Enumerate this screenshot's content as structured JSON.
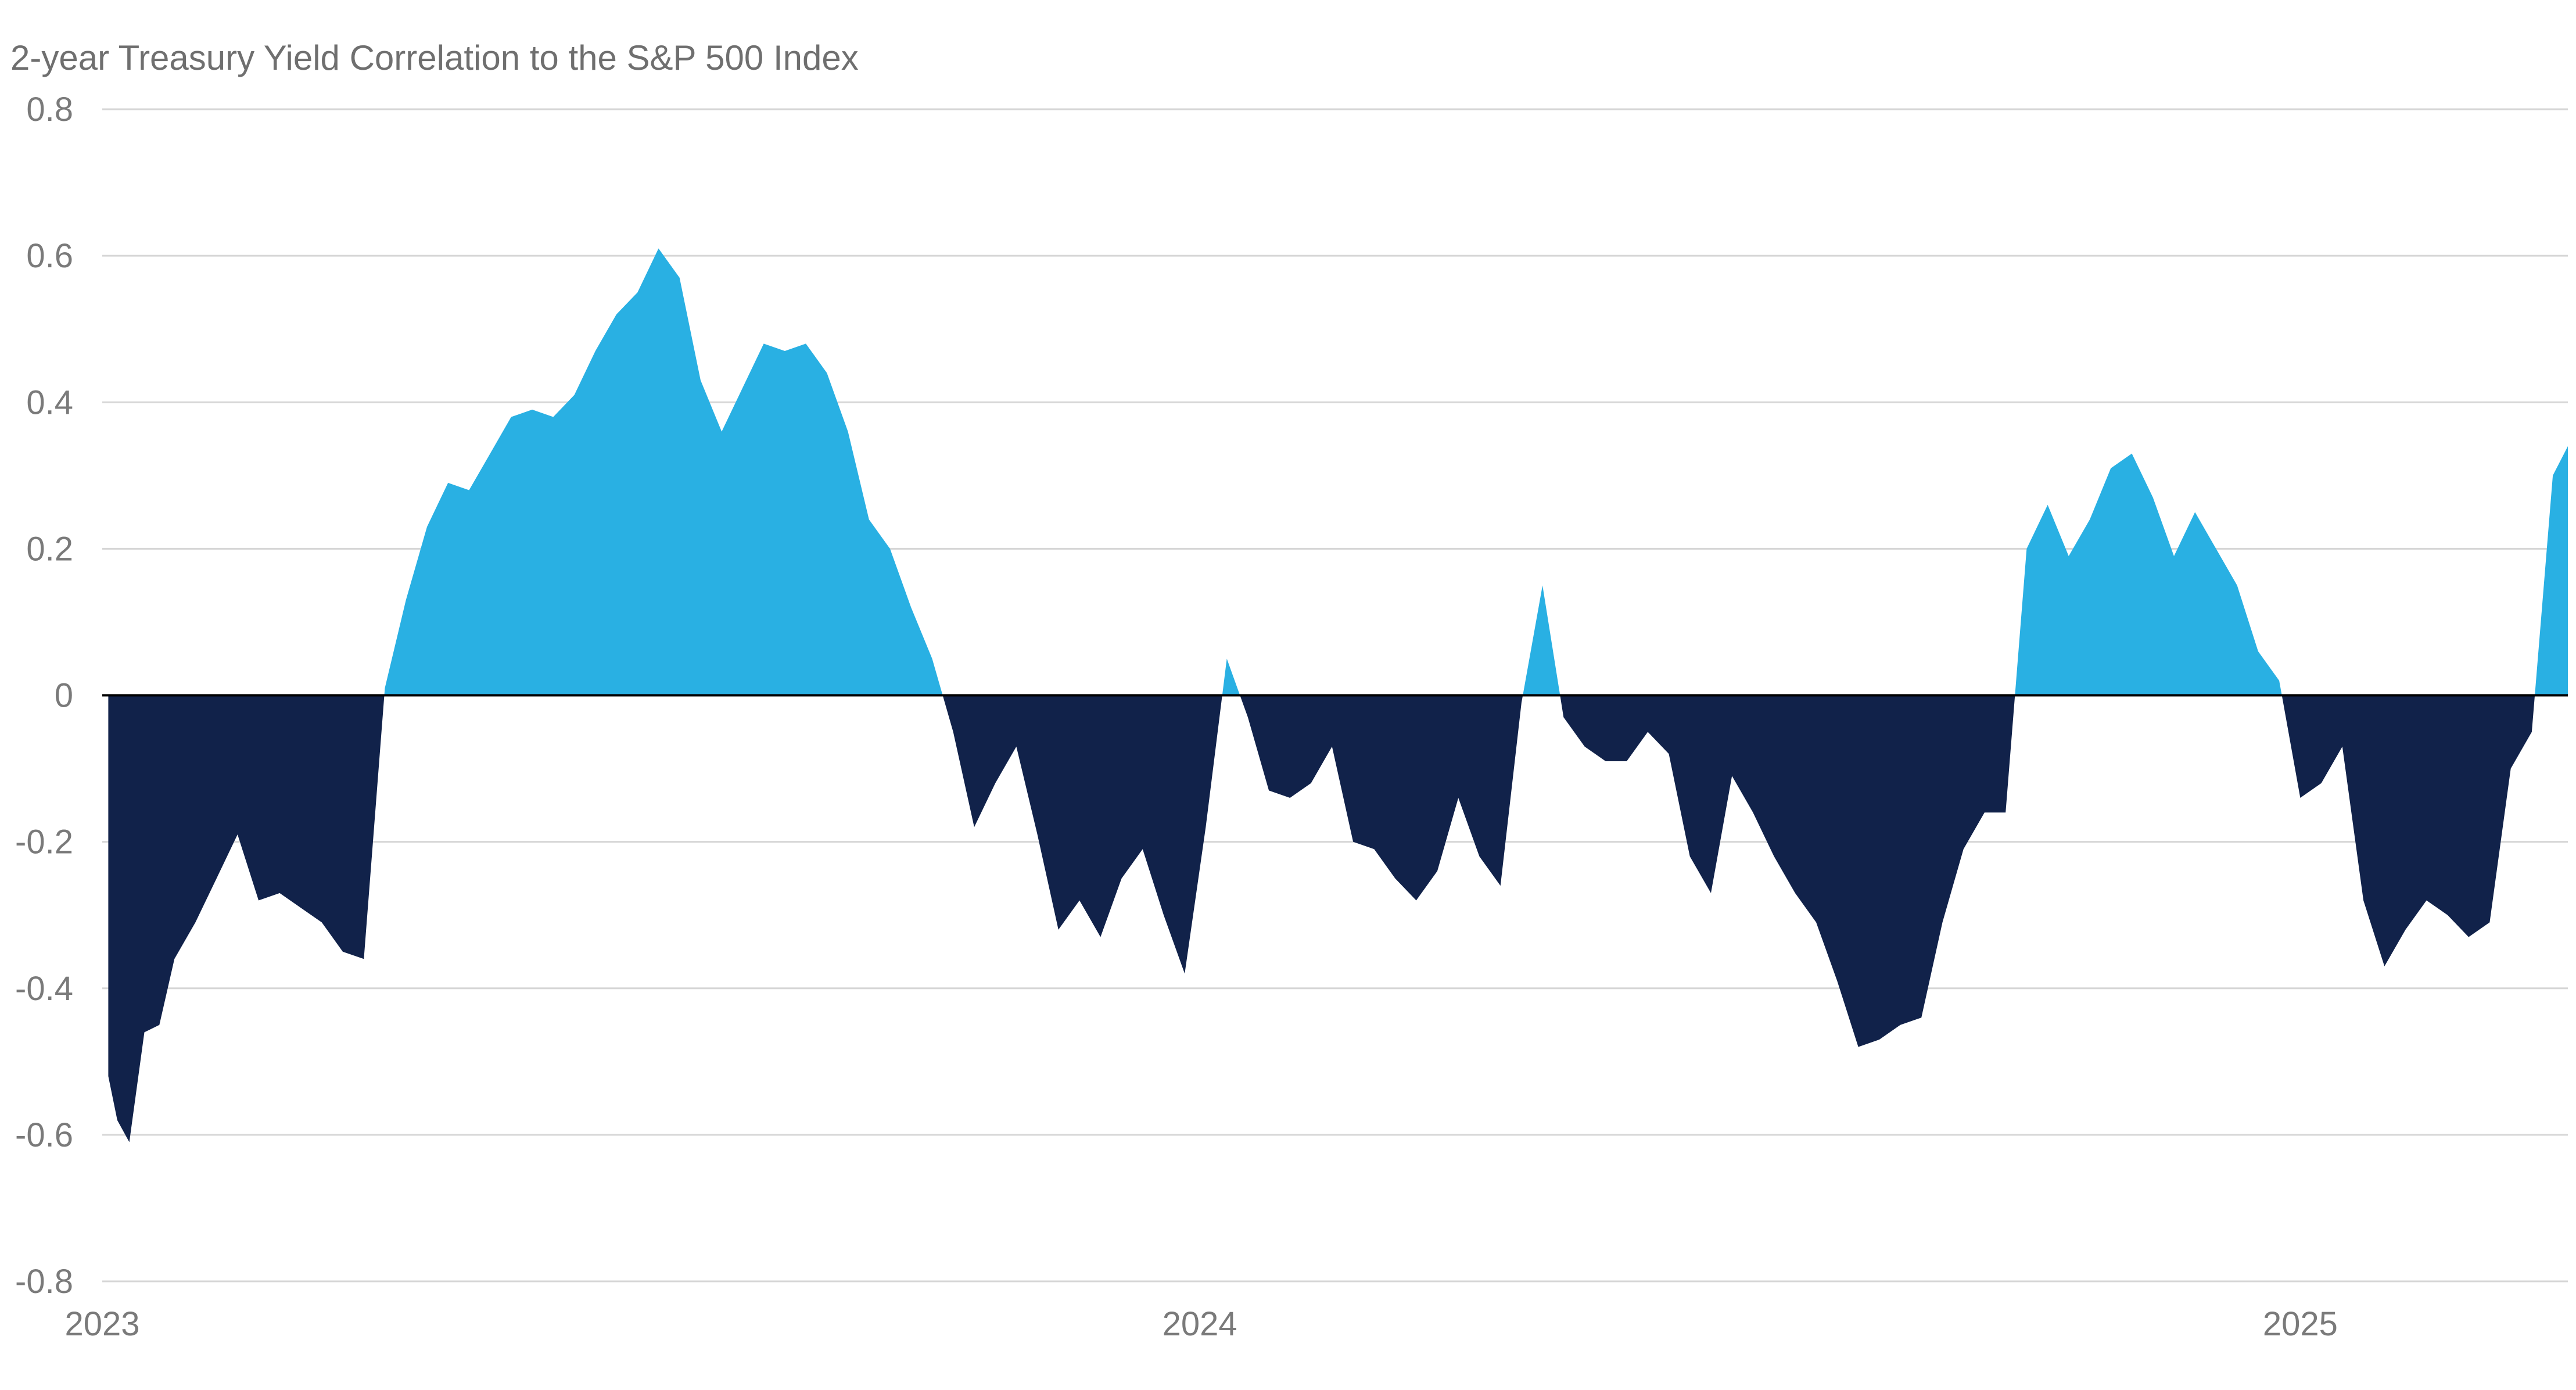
{
  "chart_data": {
    "type": "area",
    "title": "2-year Treasury Yield Correlation to the S&P 500 Index",
    "xlabel": "",
    "ylabel": "",
    "ylim": [
      -0.8,
      0.8
    ],
    "yticks": [
      0.8,
      0.6,
      0.4,
      0.2,
      0,
      -0.2,
      -0.4,
      -0.6,
      -0.8
    ],
    "ytick_labels": [
      "0.8",
      "0.6",
      "0.4",
      "0.2",
      "0",
      "-0.2",
      "-0.4",
      "-0.6",
      "-0.8"
    ],
    "xlim": [
      "2023-01-01",
      "2025-03-31"
    ],
    "xticks": [
      {
        "date": "2023-01-01",
        "label": "2023"
      },
      {
        "date": "2024-01-01",
        "label": "2024"
      },
      {
        "date": "2025-01-01",
        "label": "2025"
      }
    ],
    "grid": true,
    "colors": {
      "positive": "#29b0e3",
      "negative": "#11224a",
      "zero_line": "#000000",
      "grid": "#d6d6d6"
    },
    "series": [
      {
        "x": [
          "2023-01-03",
          "2023-01-06",
          "2023-01-10",
          "2023-01-15",
          "2023-01-20",
          "2023-01-25",
          "2023-02-01",
          "2023-02-08",
          "2023-02-15",
          "2023-02-22",
          "2023-03-01",
          "2023-03-08",
          "2023-03-15",
          "2023-03-22",
          "2023-03-29",
          "2023-04-05",
          "2023-04-12",
          "2023-04-19",
          "2023-04-26",
          "2023-05-03",
          "2023-05-10",
          "2023-05-17",
          "2023-05-24",
          "2023-05-31",
          "2023-06-07",
          "2023-06-14",
          "2023-06-21",
          "2023-06-28",
          "2023-07-05",
          "2023-07-12",
          "2023-07-19",
          "2023-07-26",
          "2023-08-02",
          "2023-08-09",
          "2023-08-16",
          "2023-08-23",
          "2023-08-30",
          "2023-09-06",
          "2023-09-13",
          "2023-09-20",
          "2023-09-27",
          "2023-10-04",
          "2023-10-11",
          "2023-10-18",
          "2023-10-25",
          "2023-11-01",
          "2023-11-08",
          "2023-11-15",
          "2023-11-22",
          "2023-11-29",
          "2023-12-06",
          "2023-12-13",
          "2023-12-20",
          "2023-12-27",
          "2024-01-03",
          "2024-01-10",
          "2024-01-17",
          "2024-01-24",
          "2024-01-31",
          "2024-02-07",
          "2024-02-14",
          "2024-02-21",
          "2024-02-28",
          "2024-03-06",
          "2024-03-13",
          "2024-03-20",
          "2024-03-27",
          "2024-04-03",
          "2024-04-10",
          "2024-04-17",
          "2024-04-24",
          "2024-05-01",
          "2024-05-08",
          "2024-05-15",
          "2024-05-22",
          "2024-05-29",
          "2024-06-05",
          "2024-06-12",
          "2024-06-19",
          "2024-06-26",
          "2024-07-03",
          "2024-07-10",
          "2024-07-17",
          "2024-07-24",
          "2024-07-31",
          "2024-08-07",
          "2024-08-14",
          "2024-08-21",
          "2024-08-28",
          "2024-09-04",
          "2024-09-11",
          "2024-09-18",
          "2024-09-25",
          "2024-10-02",
          "2024-10-09",
          "2024-10-16",
          "2024-10-23",
          "2024-10-30",
          "2024-11-06",
          "2024-11-13",
          "2024-11-20",
          "2024-11-27",
          "2024-12-04",
          "2024-12-11",
          "2024-12-18",
          "2024-12-25",
          "2025-01-01",
          "2025-01-08",
          "2025-01-15",
          "2025-01-22",
          "2025-01-29",
          "2025-02-05",
          "2025-02-12",
          "2025-02-19",
          "2025-02-26",
          "2025-03-05",
          "2025-03-12",
          "2025-03-19",
          "2025-03-26",
          "2025-03-31"
        ],
        "y": [
          -0.52,
          -0.58,
          -0.61,
          -0.46,
          -0.45,
          -0.36,
          -0.31,
          -0.25,
          -0.19,
          -0.28,
          -0.27,
          -0.29,
          -0.31,
          -0.35,
          -0.36,
          0.01,
          0.13,
          0.23,
          0.29,
          0.28,
          0.33,
          0.38,
          0.39,
          0.38,
          0.41,
          0.47,
          0.52,
          0.55,
          0.61,
          0.57,
          0.43,
          0.36,
          0.42,
          0.48,
          0.47,
          0.48,
          0.44,
          0.36,
          0.24,
          0.2,
          0.12,
          0.05,
          -0.05,
          -0.18,
          -0.12,
          -0.07,
          -0.19,
          -0.32,
          -0.28,
          -0.33,
          -0.25,
          -0.21,
          -0.3,
          -0.38,
          -0.18,
          0.05,
          -0.03,
          -0.13,
          -0.14,
          -0.12,
          -0.07,
          -0.2,
          -0.21,
          -0.25,
          -0.28,
          -0.24,
          -0.14,
          -0.22,
          -0.26,
          -0.01,
          0.15,
          -0.03,
          -0.07,
          -0.09,
          -0.09,
          -0.05,
          -0.08,
          -0.22,
          -0.27,
          -0.11,
          -0.16,
          -0.22,
          -0.27,
          -0.31,
          -0.39,
          -0.48,
          -0.47,
          -0.45,
          -0.44,
          -0.31,
          -0.21,
          -0.16,
          -0.16,
          0.2,
          0.26,
          0.19,
          0.24,
          0.31,
          0.33,
          0.27,
          0.19,
          0.25,
          0.2,
          0.15,
          0.06,
          0.02,
          -0.14,
          -0.12,
          -0.07,
          -0.28,
          -0.37,
          -0.32,
          -0.28,
          -0.3,
          -0.33,
          -0.31,
          -0.1,
          -0.05,
          0.3,
          0.34
        ]
      }
    ]
  }
}
